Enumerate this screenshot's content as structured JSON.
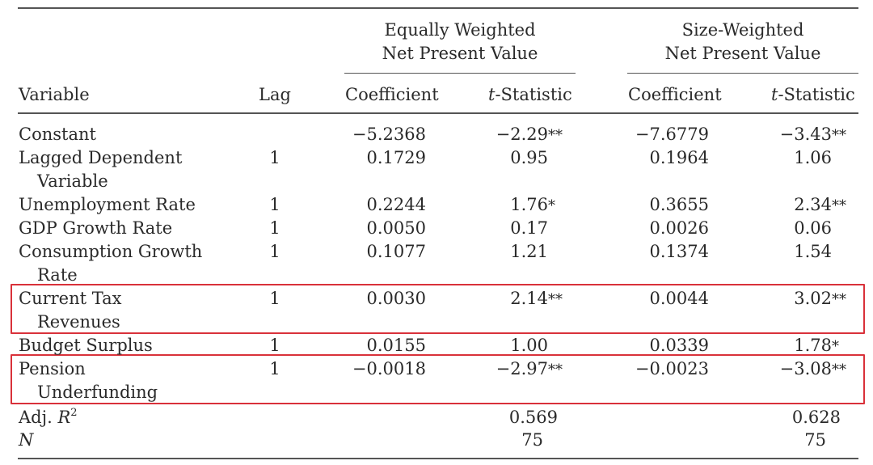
{
  "group_headers": {
    "equal": [
      "Equally Weighted",
      "Net Present Value"
    ],
    "size": [
      "Size-Weighted",
      "Net Present Value"
    ]
  },
  "columns": {
    "variable": "Variable",
    "lag": "Lag",
    "eq_coef": "Coefficient",
    "eq_t_italic": "t",
    "eq_t_rest": "-Statistic",
    "sz_coef": "Coefficient",
    "sz_t_italic": "t",
    "sz_t_rest": "-Statistic"
  },
  "rows": [
    {
      "name": [
        "Constant"
      ],
      "lag": "",
      "eq_coef": "−5.2368",
      "eq_t": "−2.29**",
      "sz_coef": "−7.6779",
      "sz_t": "−3.43**"
    },
    {
      "name": [
        "Lagged Dependent",
        "Variable"
      ],
      "lag": "1",
      "eq_coef": "0.1729",
      "eq_t": "0.95",
      "sz_coef": "0.1964",
      "sz_t": "1.06"
    },
    {
      "name": [
        "Unemployment Rate"
      ],
      "lag": "1",
      "eq_coef": "0.2244",
      "eq_t": "1.76*",
      "sz_coef": "0.3655",
      "sz_t": "2.34**"
    },
    {
      "name": [
        "GDP Growth Rate"
      ],
      "lag": "1",
      "eq_coef": "0.0050",
      "eq_t": "0.17",
      "sz_coef": "0.0026",
      "sz_t": "0.06"
    },
    {
      "name": [
        "Consumption Growth",
        "Rate"
      ],
      "lag": "1",
      "eq_coef": "0.1077",
      "eq_t": "1.21",
      "sz_coef": "0.1374",
      "sz_t": "1.54"
    },
    {
      "name": [
        "Current Tax",
        "Revenues"
      ],
      "lag": "1",
      "eq_coef": "0.0030",
      "eq_t": "2.14**",
      "sz_coef": "0.0044",
      "sz_t": "3.02**",
      "highlighted": true
    },
    {
      "name": [
        "Budget Surplus"
      ],
      "lag": "1",
      "eq_coef": "0.0155",
      "eq_t": "1.00",
      "sz_coef": "0.0339",
      "sz_t": "1.78*"
    },
    {
      "name": [
        "Pension",
        "Underfunding"
      ],
      "lag": "1",
      "eq_coef": "−0.0018",
      "eq_t": "−2.97**",
      "sz_coef": "−0.0023",
      "sz_t": "−3.08**",
      "highlighted": true
    }
  ],
  "adj_r2": {
    "label": "Adj. ",
    "label_italic": "R",
    "label_sup": "2",
    "eq": "0.569",
    "sz": "0.628"
  },
  "n": {
    "label": "N",
    "eq": "75",
    "sz": "75"
  },
  "highlight_color": "#d9313a"
}
